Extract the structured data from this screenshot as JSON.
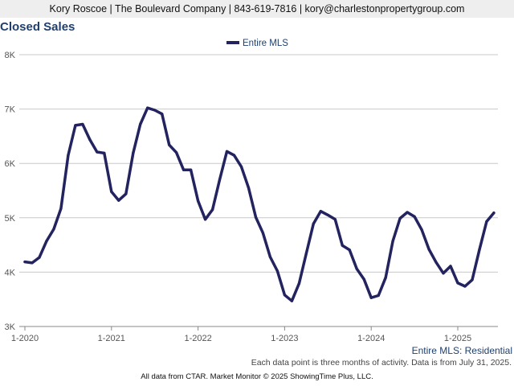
{
  "header": {
    "contact": "Kory Roscoe | The Boulevard Company | 843-619-7816 | kory@charlestonpropertygroup.com"
  },
  "footer": {
    "caption": "Entire MLS: Residential",
    "note": "Each data point is three months of activity. Data is from July 31, 2025.",
    "credit": "All data from CTAR. Market Monitor © 2025 ShowingTime Plus, LLC."
  },
  "colors": {
    "series": "#232360",
    "title": "#1f3f6e",
    "grid": "#c8c8c8"
  },
  "chart_data": {
    "type": "line",
    "title": "Closed Sales",
    "ylim": [
      3000,
      8000
    ],
    "yticks": [
      3000,
      4000,
      5000,
      6000,
      7000,
      8000
    ],
    "ytick_labels": [
      "3K",
      "4K",
      "5K",
      "6K",
      "7K",
      "8K"
    ],
    "xticks": [
      "2020-01",
      "2021-01",
      "2022-01",
      "2023-01",
      "2024-01",
      "2025-01"
    ],
    "xtick_labels": [
      "1-2020",
      "1-2021",
      "1-2022",
      "1-2023",
      "1-2024",
      "1-2025"
    ],
    "legend": "top-center",
    "grid": true,
    "series": [
      {
        "name": "Entire MLS",
        "x": [
          "2020-01",
          "2020-02",
          "2020-03",
          "2020-04",
          "2020-05",
          "2020-06",
          "2020-07",
          "2020-08",
          "2020-09",
          "2020-10",
          "2020-11",
          "2020-12",
          "2021-01",
          "2021-02",
          "2021-03",
          "2021-04",
          "2021-05",
          "2021-06",
          "2021-07",
          "2021-08",
          "2021-09",
          "2021-10",
          "2021-11",
          "2021-12",
          "2022-01",
          "2022-02",
          "2022-03",
          "2022-04",
          "2022-05",
          "2022-06",
          "2022-07",
          "2022-08",
          "2022-09",
          "2022-10",
          "2022-11",
          "2022-12",
          "2023-01",
          "2023-02",
          "2023-03",
          "2023-04",
          "2023-05",
          "2023-06",
          "2023-07",
          "2023-08",
          "2023-09",
          "2023-10",
          "2023-11",
          "2023-12",
          "2024-01",
          "2024-02",
          "2024-03",
          "2024-04",
          "2024-05",
          "2024-06",
          "2024-07",
          "2024-08",
          "2024-09",
          "2024-10",
          "2024-11",
          "2024-12",
          "2025-01",
          "2025-02",
          "2025-03",
          "2025-04",
          "2025-05",
          "2025-06",
          "2025-07"
        ],
        "values": [
          4190,
          4170,
          4270,
          4570,
          4790,
          5170,
          6150,
          6700,
          6720,
          6440,
          6210,
          6190,
          5480,
          5320,
          5440,
          6190,
          6720,
          7020,
          6980,
          6910,
          6340,
          6200,
          5880,
          5880,
          5310,
          4970,
          5150,
          5700,
          6220,
          6150,
          5940,
          5550,
          5010,
          4720,
          4280,
          4020,
          3580,
          3470,
          3790,
          4340,
          4890,
          5120,
          5050,
          4970,
          4490,
          4410,
          4060,
          3870,
          3530,
          3570,
          3900,
          4570,
          4990,
          5100,
          5020,
          4780,
          4420,
          4180,
          3980,
          4110,
          3800,
          3740,
          3860,
          4410,
          4930,
          5090,
          null
        ]
      }
    ]
  }
}
